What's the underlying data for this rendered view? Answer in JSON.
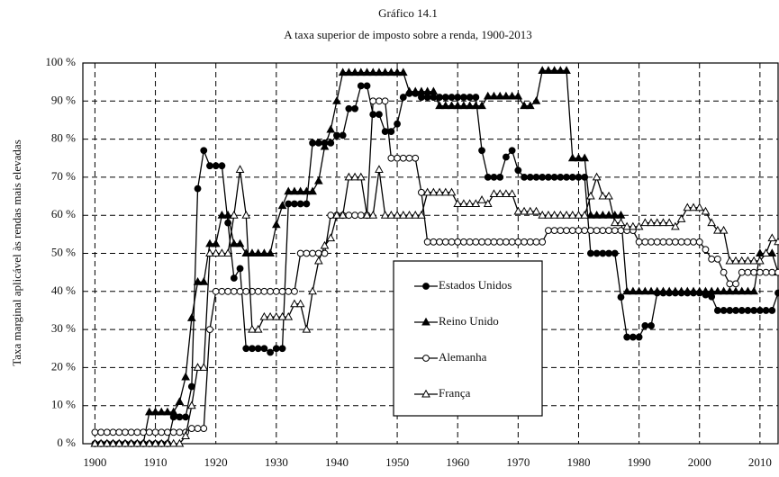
{
  "chart_data": {
    "type": "line",
    "title": "Gráfico 14.1",
    "subtitle": "A taxa superior de imposto sobre a renda, 1900-2013",
    "y_label": "Taxa marginal aplicável às rendas mais elevadas",
    "x": [
      1900,
      1901,
      1902,
      1903,
      1904,
      1905,
      1906,
      1907,
      1908,
      1909,
      1910,
      1911,
      1912,
      1913,
      1914,
      1915,
      1916,
      1917,
      1918,
      1919,
      1920,
      1921,
      1922,
      1923,
      1924,
      1925,
      1926,
      1927,
      1928,
      1929,
      1930,
      1931,
      1932,
      1933,
      1934,
      1935,
      1936,
      1937,
      1938,
      1939,
      1940,
      1941,
      1942,
      1943,
      1944,
      1945,
      1946,
      1947,
      1948,
      1949,
      1950,
      1951,
      1952,
      1953,
      1954,
      1955,
      1956,
      1957,
      1958,
      1959,
      1960,
      1961,
      1962,
      1963,
      1964,
      1965,
      1966,
      1967,
      1968,
      1969,
      1970,
      1971,
      1972,
      1973,
      1974,
      1975,
      1976,
      1977,
      1978,
      1979,
      1980,
      1981,
      1982,
      1983,
      1984,
      1985,
      1986,
      1987,
      1988,
      1989,
      1990,
      1991,
      1992,
      1993,
      1994,
      1995,
      1996,
      1997,
      1998,
      1999,
      2000,
      2001,
      2002,
      2003,
      2004,
      2005,
      2006,
      2007,
      2008,
      2009,
      2010,
      2011,
      2012,
      2013
    ],
    "series": [
      {
        "name": "Estados Unidos",
        "color": "#000000",
        "marker": "circle",
        "filled": true,
        "values": [
          0,
          0,
          0,
          0,
          0,
          0,
          0,
          0,
          0,
          0,
          0,
          0,
          0,
          7,
          7,
          7,
          15,
          67,
          77,
          73,
          73,
          73,
          58,
          43.5,
          46,
          25,
          25,
          25,
          25,
          24,
          25,
          25,
          63,
          63,
          63,
          63,
          79,
          79,
          79,
          79,
          81,
          81,
          88,
          88,
          94,
          94,
          86.5,
          86.5,
          82,
          82,
          84,
          91,
          92,
          92,
          91,
          91,
          91,
          91,
          91,
          91,
          91,
          91,
          91,
          91,
          77,
          70,
          70,
          70,
          75.3,
          77,
          71.8,
          70,
          70,
          70,
          70,
          70,
          70,
          70,
          70,
          70,
          70,
          70,
          50,
          50,
          50,
          50,
          50,
          38.5,
          28,
          28,
          28,
          31,
          31,
          39.6,
          39.6,
          39.6,
          39.6,
          39.6,
          39.6,
          39.6,
          39.6,
          39.1,
          38.6,
          35,
          35,
          35,
          35,
          35,
          35,
          35,
          35,
          35,
          35,
          39.6
        ]
      },
      {
        "name": "Reino Unido",
        "color": "#000000",
        "marker": "triangle",
        "filled": true,
        "values": [
          0,
          0,
          0,
          0,
          0,
          0,
          0,
          0,
          0,
          8.3,
          8.3,
          8.3,
          8.3,
          8.3,
          11,
          17.5,
          33,
          42.5,
          42.5,
          52.5,
          52.5,
          60,
          60,
          52.5,
          52.5,
          50,
          50,
          50,
          50,
          50,
          57.5,
          62.5,
          66.25,
          66.25,
          66.25,
          66.25,
          66.25,
          69,
          78,
          82.5,
          90,
          97.5,
          97.5,
          97.5,
          97.5,
          97.5,
          97.5,
          97.5,
          97.5,
          97.5,
          97.5,
          97.5,
          92.5,
          92.5,
          92.5,
          92.5,
          92.5,
          88.75,
          88.75,
          88.75,
          88.75,
          88.75,
          88.75,
          88.75,
          88.75,
          91.25,
          91.25,
          91.25,
          91.25,
          91.25,
          91.25,
          88.75,
          88.75,
          90,
          98,
          98,
          98,
          98,
          98,
          75,
          75,
          75,
          60,
          60,
          60,
          60,
          60,
          60,
          40,
          40,
          40,
          40,
          40,
          40,
          40,
          40,
          40,
          40,
          40,
          40,
          40,
          40,
          40,
          40,
          40,
          40,
          40,
          40,
          40,
          40,
          50,
          50,
          50,
          45
        ]
      },
      {
        "name": "Alemanha",
        "color": "#000000",
        "marker": "circle",
        "filled": false,
        "values": [
          3,
          3,
          3,
          3,
          3,
          3,
          3,
          3,
          3,
          3,
          3,
          3,
          3,
          3,
          3,
          3,
          4,
          4,
          4,
          30,
          40,
          40,
          40,
          40,
          40,
          40,
          40,
          40,
          40,
          40,
          40,
          40,
          40,
          40,
          50,
          50,
          50,
          50,
          50,
          60,
          60,
          60,
          60,
          60,
          60,
          60,
          90,
          90,
          90,
          75,
          75,
          75,
          75,
          75,
          66,
          53,
          53,
          53,
          53,
          53,
          53,
          53,
          53,
          53,
          53,
          53,
          53,
          53,
          53,
          53,
          53,
          53,
          53,
          53,
          53,
          56,
          56,
          56,
          56,
          56,
          56,
          56,
          56,
          56,
          56,
          56,
          56,
          56,
          56,
          56,
          53,
          53,
          53,
          53,
          53,
          53,
          53,
          53,
          53,
          53,
          53,
          51,
          48.5,
          48.5,
          45,
          42,
          42,
          45,
          45,
          45,
          45,
          45,
          45,
          45
        ]
      },
      {
        "name": "França",
        "color": "#000000",
        "marker": "triangle",
        "filled": false,
        "values": [
          0,
          0,
          0,
          0,
          0,
          0,
          0,
          0,
          0,
          0,
          0,
          0,
          0,
          0,
          0,
          2,
          10,
          20,
          20,
          50,
          50,
          50,
          50,
          60,
          72,
          60,
          30,
          30,
          33.3,
          33.3,
          33.3,
          33.3,
          33.3,
          36.7,
          36.7,
          30,
          40,
          48,
          52,
          54,
          60,
          60,
          70,
          70,
          70,
          60,
          60,
          72,
          60,
          60,
          60,
          60,
          60,
          60,
          60,
          66,
          66,
          66,
          66,
          66,
          63,
          63,
          63,
          63,
          64,
          63,
          65.6,
          65.6,
          65.6,
          65.6,
          61,
          61,
          61,
          61,
          60,
          60,
          60,
          60,
          60,
          60,
          60,
          60,
          65,
          70,
          65,
          65,
          58,
          58,
          57,
          57,
          57,
          58,
          58,
          58,
          58,
          58,
          57,
          59,
          62,
          62,
          62,
          61,
          58,
          56,
          56,
          48,
          48,
          48,
          48,
          48,
          48,
          50,
          54,
          53
        ]
      }
    ],
    "xlim": [
      1898,
      2013
    ],
    "xticks": [
      1900,
      1910,
      1920,
      1930,
      1940,
      1950,
      1960,
      1970,
      1980,
      1990,
      2000,
      2010
    ],
    "ylim": [
      0,
      100
    ],
    "yticks": [
      {
        "value": 0,
        "label": "0 %"
      },
      {
        "value": 10,
        "label": "10 %"
      },
      {
        "value": 20,
        "label": "20 %"
      },
      {
        "value": 30,
        "label": "30 %"
      },
      {
        "value": 40,
        "label": "40 %"
      },
      {
        "value": 50,
        "label": "50 %"
      },
      {
        "value": 60,
        "label": "60 %"
      },
      {
        "value": 70,
        "label": "70 %"
      },
      {
        "value": 80,
        "label": "80 %"
      },
      {
        "value": 90,
        "label": "90 %"
      },
      {
        "value": 100,
        "label": "100 %"
      }
    ],
    "grid": true
  }
}
